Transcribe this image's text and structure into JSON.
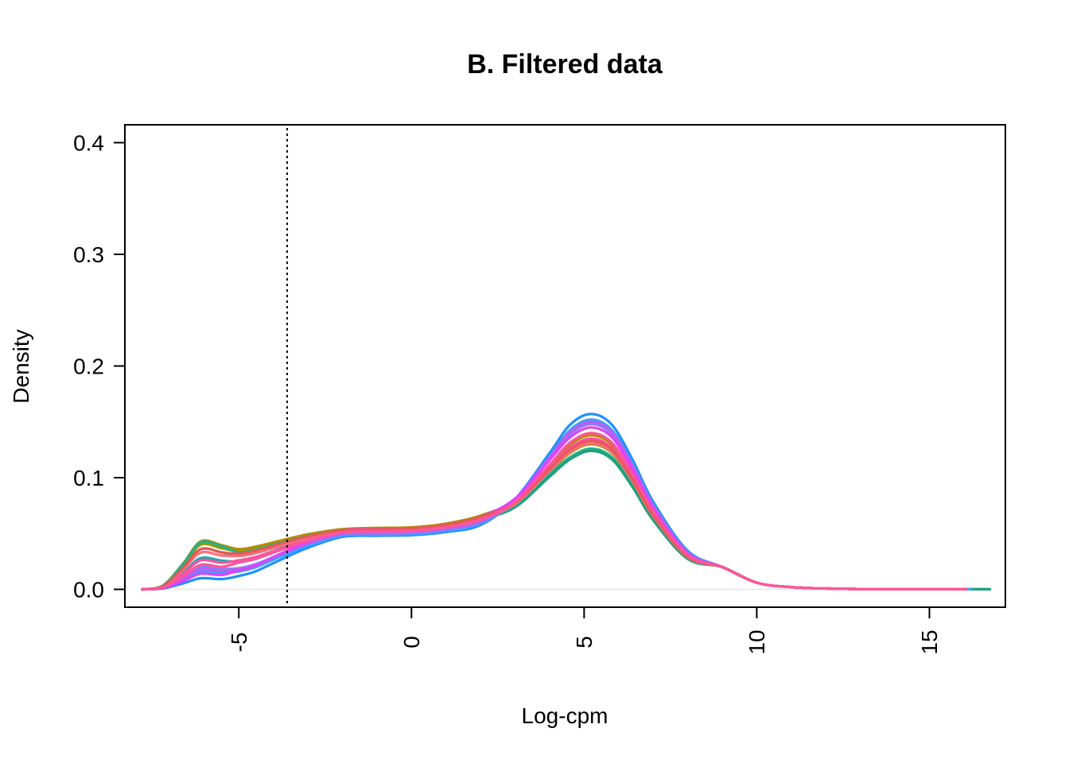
{
  "chart_data": {
    "type": "line",
    "title": "B. Filtered data",
    "xlabel": "Log-cpm",
    "ylabel": "Density",
    "xlim": [
      -8.3,
      17.2
    ],
    "ylim": [
      -0.016,
      0.416
    ],
    "x_ticks": [
      -5,
      0,
      5,
      10,
      15
    ],
    "x_tick_labels": [
      "-5",
      "0",
      "5",
      "10",
      "15"
    ],
    "y_ticks": [
      0.0,
      0.1,
      0.2,
      0.3,
      0.4
    ],
    "y_tick_labels": [
      "0.0",
      "0.1",
      "0.2",
      "0.3",
      "0.4"
    ],
    "x_tick_label_rotation": "vertical",
    "grid": false,
    "legend": "none",
    "cutoff_line": {
      "x": -3.6,
      "style": "dotted",
      "color": "#000000"
    },
    "baseline": {
      "y": 0.0,
      "color": "#e6e6e6"
    },
    "x": [
      -7.8,
      -7.2,
      -6.6,
      -6.1,
      -5.5,
      -5.0,
      -4.5,
      -3.8,
      -3.0,
      -2.0,
      -1.0,
      0.0,
      1.0,
      2.0,
      3.0,
      4.0,
      4.6,
      5.2,
      5.8,
      6.4,
      7.0,
      8.0,
      9.0,
      10.0,
      11.0,
      12.0,
      13.0,
      14.0,
      15.0,
      16.0,
      16.7
    ],
    "series": [
      {
        "color": "#b58a00",
        "low": 0.043,
        "dip": 0.036,
        "plateau": 0.055,
        "peak": 0.138,
        "end_x": 16.0
      },
      {
        "color": "#9a9a00",
        "low": 0.04,
        "dip": 0.034,
        "plateau": 0.053,
        "peak": 0.13,
        "end_x": 16.0
      },
      {
        "color": "#23b08a",
        "low": 0.042,
        "dip": 0.033,
        "plateau": 0.054,
        "peak": 0.126,
        "end_x": 16.7
      },
      {
        "color": "#1fa07a",
        "low": 0.036,
        "dip": 0.03,
        "plateau": 0.052,
        "peak": 0.124,
        "end_x": 16.7
      },
      {
        "color": "#2aa8a8",
        "low": 0.028,
        "dip": 0.025,
        "plateau": 0.051,
        "peak": 0.133,
        "end_x": 16.2
      },
      {
        "color": "#1e90ff",
        "low": 0.01,
        "dip": 0.012,
        "plateau": 0.048,
        "peak": 0.157,
        "end_x": 16.2
      },
      {
        "color": "#3aa0ff",
        "low": 0.016,
        "dip": 0.016,
        "plateau": 0.049,
        "peak": 0.152,
        "end_x": 16.2
      },
      {
        "color": "#8a7cff",
        "low": 0.02,
        "dip": 0.019,
        "plateau": 0.05,
        "peak": 0.148,
        "end_x": 16.0
      },
      {
        "color": "#c05cf0",
        "low": 0.018,
        "dip": 0.018,
        "plateau": 0.051,
        "peak": 0.15,
        "end_x": 16.0
      },
      {
        "color": "#e040fb",
        "low": 0.014,
        "dip": 0.017,
        "plateau": 0.054,
        "peak": 0.145,
        "end_x": 16.0
      },
      {
        "color": "#ff4fa0",
        "low": 0.026,
        "dip": 0.026,
        "plateau": 0.052,
        "peak": 0.135,
        "end_x": 16.0
      },
      {
        "color": "#ff6f7f",
        "low": 0.033,
        "dip": 0.03,
        "plateau": 0.053,
        "peak": 0.131,
        "end_x": 16.0
      },
      {
        "color": "#e8585a",
        "low": 0.036,
        "dip": 0.032,
        "plateau": 0.054,
        "peak": 0.133,
        "end_x": 16.0
      },
      {
        "color": "#ff5599",
        "low": 0.022,
        "dip": 0.024,
        "plateau": 0.052,
        "peak": 0.14,
        "end_x": 16.0
      }
    ]
  }
}
